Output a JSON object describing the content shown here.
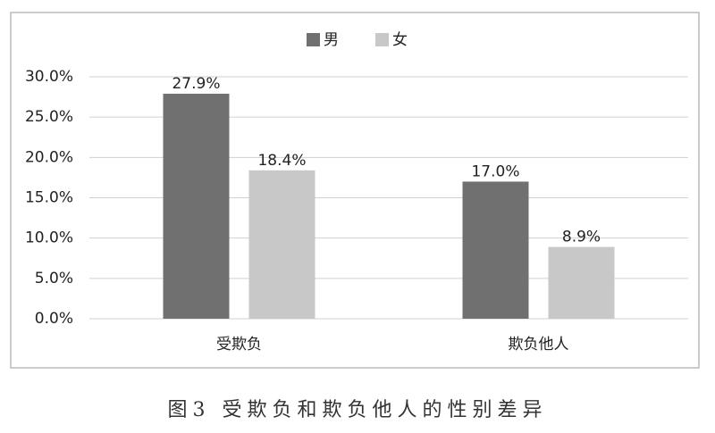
{
  "chart_data": {
    "type": "bar",
    "title": "图3  受欺负和欺负他人的性别差异",
    "categories": [
      "受欺负",
      "欺负他人"
    ],
    "series": [
      {
        "name": "男",
        "color": "#707070",
        "values": [
          27.9,
          17.0
        ],
        "value_labels": [
          "27.9%",
          "17.0%"
        ]
      },
      {
        "name": "女",
        "color": "#c8c8c8",
        "values": [
          18.4,
          8.9
        ],
        "value_labels": [
          "18.4%",
          "8.9%"
        ]
      }
    ],
    "ylim": [
      0,
      30
    ],
    "yticks": [
      {
        "value": 0,
        "label": "0.0%"
      },
      {
        "value": 5,
        "label": "5.0%"
      },
      {
        "value": 10,
        "label": "10.0%"
      },
      {
        "value": 15,
        "label": "15.0%"
      },
      {
        "value": 20,
        "label": "20.0%"
      },
      {
        "value": 25,
        "label": "25.0%"
      },
      {
        "value": 30,
        "label": "30.0%"
      }
    ],
    "grid": true,
    "legend": "top"
  }
}
